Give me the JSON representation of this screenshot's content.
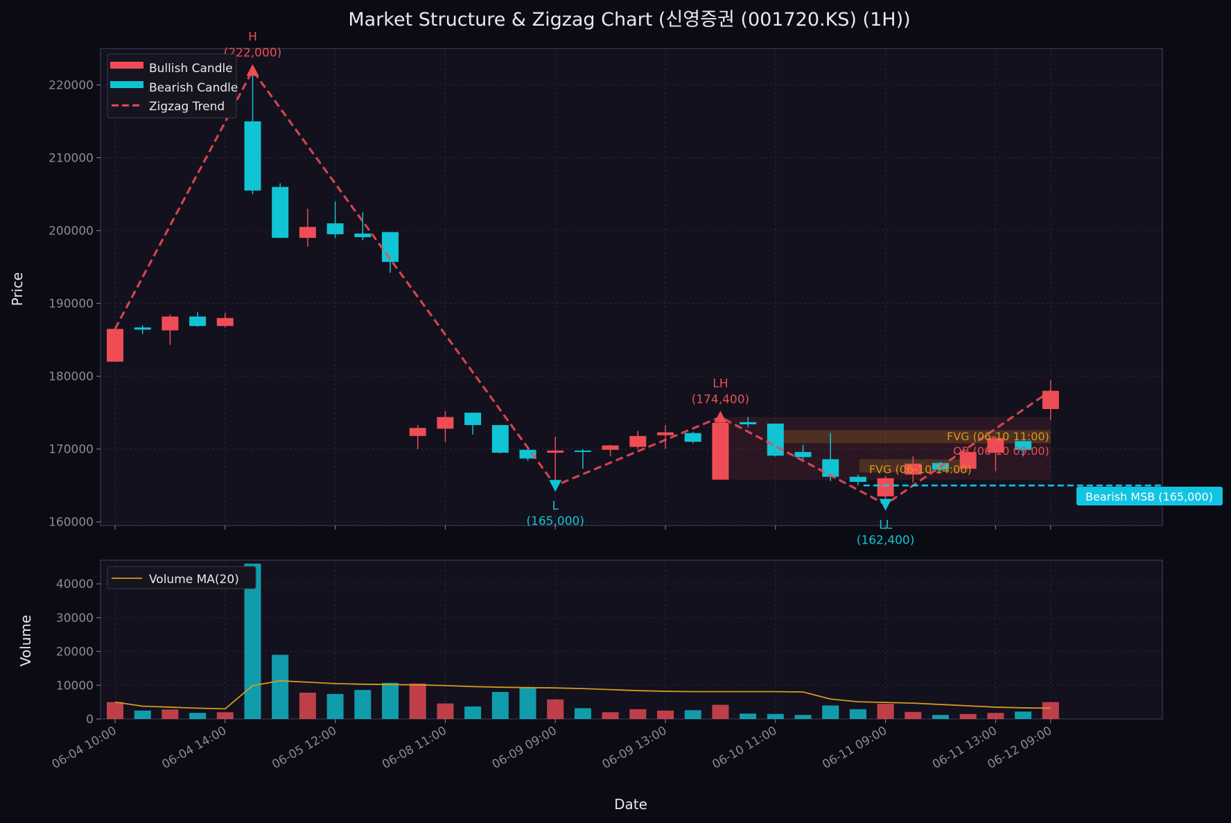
{
  "colors": {
    "background": "#0b0b14",
    "panel": "#12111d",
    "grid": "#2a2a3a",
    "axis_text": "#8a8a9a",
    "label_text": "#e8e8ee",
    "bullish": "#ef4d56",
    "bearish": "#10c4d4",
    "zigzag": "#e84a55",
    "volume_ma": "#d99a1e",
    "fvg": "#d9951e",
    "ob": "#e84a55",
    "msb": "#11c4e4"
  },
  "chart_data": [
    {
      "type": "candlestick",
      "title": "Market Structure & Zigzag Chart (신영증권 (001720.KS) (1H))",
      "xlabel": "",
      "ylabel": "Price",
      "ylim": [
        159500,
        225000
      ],
      "yticks": [
        160000,
        170000,
        180000,
        190000,
        200000,
        210000,
        220000
      ],
      "grid": true,
      "legend_position": "top-left",
      "legend": [
        {
          "label": "Bullish Candle",
          "kind": "bar-bullish"
        },
        {
          "label": "Bearish Candle",
          "kind": "bar-bearish"
        },
        {
          "label": "Zigzag Trend",
          "kind": "dashed"
        }
      ],
      "candles": [
        {
          "o": 182000,
          "h": 186500,
          "l": 182000,
          "c": 186500
        },
        {
          "o": 186700,
          "h": 187000,
          "l": 185800,
          "c": 186400
        },
        {
          "o": 186300,
          "h": 188500,
          "l": 184300,
          "c": 188200
        },
        {
          "o": 188200,
          "h": 188800,
          "l": 186800,
          "c": 186900
        },
        {
          "o": 186900,
          "h": 188700,
          "l": 186700,
          "c": 188000
        },
        {
          "o": 215000,
          "h": 222000,
          "l": 205000,
          "c": 205500
        },
        {
          "o": 206000,
          "h": 206500,
          "l": 199000,
          "c": 199000
        },
        {
          "o": 199000,
          "h": 203000,
          "l": 197800,
          "c": 200500
        },
        {
          "o": 201000,
          "h": 204000,
          "l": 199000,
          "c": 199500
        },
        {
          "o": 199600,
          "h": 202500,
          "l": 198700,
          "c": 199100
        },
        {
          "o": 199800,
          "h": 199800,
          "l": 194200,
          "c": 195700
        },
        {
          "o": 171800,
          "h": 173300,
          "l": 170000,
          "c": 172900
        },
        {
          "o": 172800,
          "h": 175200,
          "l": 171000,
          "c": 174400
        },
        {
          "o": 175000,
          "h": 175000,
          "l": 172000,
          "c": 173300
        },
        {
          "o": 173300,
          "h": 173300,
          "l": 169400,
          "c": 169500
        },
        {
          "o": 169900,
          "h": 170300,
          "l": 168400,
          "c": 168700
        },
        {
          "o": 169500,
          "h": 171700,
          "l": 165000,
          "c": 169800
        },
        {
          "o": 169800,
          "h": 170000,
          "l": 167300,
          "c": 169600
        },
        {
          "o": 169900,
          "h": 170600,
          "l": 169000,
          "c": 170500
        },
        {
          "o": 170300,
          "h": 172500,
          "l": 170000,
          "c": 171800
        },
        {
          "o": 171900,
          "h": 173300,
          "l": 170000,
          "c": 172300
        },
        {
          "o": 172200,
          "h": 172400,
          "l": 170800,
          "c": 171000
        },
        {
          "o": 165800,
          "h": 174400,
          "l": 165800,
          "c": 173600
        },
        {
          "o": 173700,
          "h": 174400,
          "l": 173000,
          "c": 173400
        },
        {
          "o": 173500,
          "h": 173500,
          "l": 169000,
          "c": 169100
        },
        {
          "o": 169600,
          "h": 170600,
          "l": 168600,
          "c": 168900
        },
        {
          "o": 168600,
          "h": 172200,
          "l": 165600,
          "c": 166200
        },
        {
          "o": 166200,
          "h": 166500,
          "l": 165000,
          "c": 165500
        },
        {
          "o": 163500,
          "h": 166300,
          "l": 162400,
          "c": 166000
        },
        {
          "o": 166500,
          "h": 169000,
          "l": 165400,
          "c": 168000
        },
        {
          "o": 168100,
          "h": 168300,
          "l": 167000,
          "c": 167200
        },
        {
          "o": 167300,
          "h": 169800,
          "l": 167300,
          "c": 169600
        },
        {
          "o": 169500,
          "h": 171700,
          "l": 167000,
          "c": 171500
        },
        {
          "o": 171100,
          "h": 171100,
          "l": 169000,
          "c": 169900
        },
        {
          "o": 175500,
          "h": 179500,
          "l": 174000,
          "c": 178000
        }
      ],
      "zigzag": [
        {
          "i": 0,
          "y": 186500
        },
        {
          "i": 5,
          "y": 222000
        },
        {
          "i": 16,
          "y": 165000
        },
        {
          "i": 22,
          "y": 174400
        },
        {
          "i": 28,
          "y": 162400
        },
        {
          "i": 34,
          "y": 178000
        }
      ],
      "pivots": [
        {
          "i": 5,
          "y": 222000,
          "kind": "high",
          "label": "H",
          "value": "(222,000)"
        },
        {
          "i": 16,
          "y": 165000,
          "kind": "low",
          "label": "L",
          "value": "(165,000)"
        },
        {
          "i": 22,
          "y": 174400,
          "kind": "high",
          "label": "LH",
          "value": "(174,400)"
        },
        {
          "i": 28,
          "y": 162400,
          "kind": "low",
          "label": "LL",
          "value": "(162,400)"
        }
      ],
      "zones": [
        {
          "kind": "ob",
          "i_start": 22,
          "i_end": 34,
          "y_low": 165800,
          "y_high": 174400,
          "label": "OB (06-10 09:00)"
        },
        {
          "kind": "fvg",
          "i_start": 24,
          "i_end": 34,
          "y_low": 170800,
          "y_high": 172600,
          "label": "FVG (06-10 11:00)"
        },
        {
          "kind": "fvg",
          "i_start": 27,
          "i_end": 31,
          "y_low": 166800,
          "y_high": 168600,
          "label": "FVG (06-10 14:00)"
        }
      ],
      "msb": {
        "y": 165000,
        "i_start": 27.2,
        "label": "Bearish MSB (165,000)"
      }
    },
    {
      "type": "bar",
      "xlabel": "Date",
      "ylabel": "Volume",
      "ylim": [
        0,
        47000
      ],
      "yticks": [
        0,
        10000,
        20000,
        30000,
        40000
      ],
      "grid": true,
      "legend_position": "top-left",
      "legend": [
        {
          "label": "Volume MA(20)",
          "kind": "line"
        }
      ],
      "volumes": [
        5000,
        2500,
        2800,
        1800,
        2000,
        46000,
        19000,
        7800,
        7400,
        8600,
        10700,
        10500,
        4600,
        3700,
        8000,
        9300,
        5800,
        3200,
        2000,
        2900,
        2500,
        2600,
        4200,
        1600,
        1500,
        1200,
        4000,
        2900,
        4500,
        2100,
        1200,
        1500,
        1800,
        2200,
        5000
      ],
      "volume_ma": [
        5000,
        3800,
        3500,
        3200,
        3000,
        9900,
        11300,
        10900,
        10500,
        10300,
        10200,
        10100,
        9900,
        9600,
        9400,
        9300,
        9200,
        9000,
        8700,
        8400,
        8200,
        8100,
        8100,
        8100,
        8100,
        8000,
        5900,
        5100,
        4900,
        4700,
        4300,
        3900,
        3500,
        3300,
        3200
      ],
      "x_ticks": [
        {
          "i": 0,
          "label": "06-04 10:00"
        },
        {
          "i": 4,
          "label": "06-04 14:00"
        },
        {
          "i": 8,
          "label": "06-05 12:00"
        },
        {
          "i": 12,
          "label": "06-08 11:00"
        },
        {
          "i": 16,
          "label": "06-09 09:00"
        },
        {
          "i": 20,
          "label": "06-09 13:00"
        },
        {
          "i": 24,
          "label": "06-10 11:00"
        },
        {
          "i": 28,
          "label": "06-11 09:00"
        },
        {
          "i": 32,
          "label": "06-11 13:00"
        },
        {
          "i": 34,
          "label": "06-12 09:00"
        }
      ]
    }
  ]
}
